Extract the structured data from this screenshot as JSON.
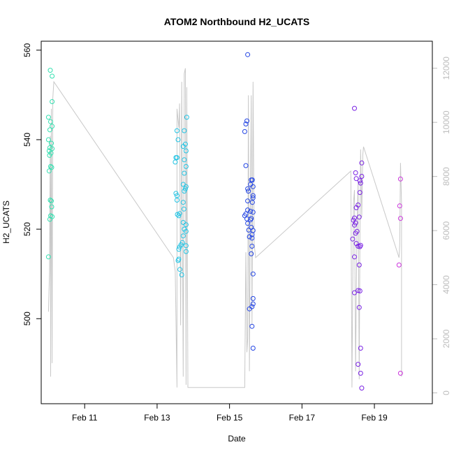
{
  "chart_data": {
    "type": "scatter",
    "title": "ATOM2 Northbound H2_UCATS",
    "xlabel": "Date",
    "ylabel": "H2_UCATS",
    "x_ticks": [
      {
        "day": 11,
        "label": "Feb 11"
      },
      {
        "day": 13,
        "label": "Feb 13"
      },
      {
        "day": 15,
        "label": "Feb 15"
      },
      {
        "day": 17,
        "label": "Feb 17"
      },
      {
        "day": 19,
        "label": "Feb 19"
      }
    ],
    "xlim": [
      9.8,
      20.6
    ],
    "ylim": [
      481,
      562
    ],
    "y_ticks": [
      500,
      520,
      540,
      560
    ],
    "y2lim": [
      -400,
      13000
    ],
    "y2_ticks": [
      0,
      2000,
      4000,
      6000,
      8000,
      10000,
      12000
    ],
    "grid": false,
    "colors": {
      "feb10": "#33e0b0",
      "feb13": "#22c4e4",
      "feb15": "#2244e4",
      "feb18": "#7a22e4",
      "feb19": "#cc33dd",
      "line": "#c8c8c8"
    },
    "series": [
      {
        "color_key": "feb10",
        "points": [
          [
            10.05,
            555.5
          ],
          [
            10.1,
            554.2
          ],
          [
            10.0,
            545
          ],
          [
            10.06,
            544
          ],
          [
            10.1,
            543
          ],
          [
            10.04,
            542.2
          ],
          [
            10.0,
            540
          ],
          [
            10.08,
            539.2
          ],
          [
            10.04,
            538.2
          ],
          [
            10.1,
            538
          ],
          [
            10.02,
            537.5
          ],
          [
            10.07,
            537
          ],
          [
            10.03,
            536.5
          ],
          [
            10.06,
            534
          ],
          [
            10.09,
            533.8
          ],
          [
            10.02,
            533
          ],
          [
            10.05,
            526.5
          ],
          [
            10.08,
            526.3
          ],
          [
            10.09,
            525
          ],
          [
            10.06,
            523
          ],
          [
            10.1,
            522.8
          ],
          [
            10.04,
            522.2
          ],
          [
            10.0,
            513.8
          ],
          [
            10.1,
            548.5
          ]
        ]
      },
      {
        "color_key": "feb13",
        "points": [
          [
            13.55,
            542
          ],
          [
            13.75,
            542
          ],
          [
            13.58,
            540
          ],
          [
            13.72,
            538.5
          ],
          [
            13.78,
            539
          ],
          [
            13.8,
            537.5
          ],
          [
            13.52,
            536
          ],
          [
            13.55,
            536
          ],
          [
            13.5,
            535
          ],
          [
            13.75,
            535.5
          ],
          [
            13.8,
            534
          ],
          [
            13.75,
            532.5
          ],
          [
            13.72,
            530
          ],
          [
            13.8,
            529.5
          ],
          [
            13.78,
            529
          ],
          [
            13.75,
            528.5
          ],
          [
            13.52,
            528
          ],
          [
            13.55,
            527.5
          ],
          [
            13.55,
            526.5
          ],
          [
            13.72,
            526
          ],
          [
            13.74,
            524.5
          ],
          [
            13.6,
            523
          ],
          [
            13.62,
            523.5
          ],
          [
            13.56,
            523.3
          ],
          [
            13.72,
            521.5
          ],
          [
            13.8,
            521
          ],
          [
            13.75,
            520
          ],
          [
            13.8,
            519.5
          ],
          [
            13.72,
            518.5
          ],
          [
            13.7,
            517
          ],
          [
            13.66,
            516.5
          ],
          [
            13.62,
            516
          ],
          [
            13.6,
            515.5
          ],
          [
            13.8,
            515
          ],
          [
            13.6,
            513.3
          ],
          [
            13.58,
            513
          ],
          [
            13.63,
            511
          ],
          [
            13.68,
            509.8
          ],
          [
            13.82,
            545
          ],
          [
            13.8,
            516.3
          ]
        ]
      },
      {
        "color_key": "feb15",
        "points": [
          [
            15.5,
            559
          ],
          [
            15.45,
            543.5
          ],
          [
            15.48,
            544.2
          ],
          [
            15.42,
            541.8
          ],
          [
            15.45,
            534.2
          ],
          [
            15.6,
            531
          ],
          [
            15.63,
            531
          ],
          [
            15.58,
            530
          ],
          [
            15.65,
            529.5
          ],
          [
            15.5,
            529
          ],
          [
            15.52,
            528.5
          ],
          [
            15.65,
            527.5
          ],
          [
            15.65,
            527
          ],
          [
            15.63,
            526
          ],
          [
            15.5,
            526.3
          ],
          [
            15.58,
            524
          ],
          [
            15.65,
            523.8
          ],
          [
            15.5,
            524.3
          ],
          [
            15.45,
            523.4
          ],
          [
            15.42,
            523
          ],
          [
            15.48,
            522.3
          ],
          [
            15.6,
            522.4
          ],
          [
            15.58,
            522.1
          ],
          [
            15.5,
            521.3
          ],
          [
            15.6,
            520.4
          ],
          [
            15.53,
            519.8
          ],
          [
            15.65,
            519.7
          ],
          [
            15.62,
            518.8
          ],
          [
            15.55,
            518.3
          ],
          [
            15.62,
            518
          ],
          [
            15.62,
            516.2
          ],
          [
            15.6,
            514.5
          ],
          [
            15.65,
            510
          ],
          [
            15.65,
            504.5
          ],
          [
            15.65,
            503.3
          ],
          [
            15.62,
            502.7
          ],
          [
            15.55,
            502.2
          ],
          [
            15.62,
            498.3
          ],
          [
            15.65,
            493.4
          ]
        ]
      },
      {
        "color_key": "feb18",
        "points": [
          [
            18.45,
            547
          ],
          [
            18.65,
            534.8
          ],
          [
            18.48,
            532.6
          ],
          [
            18.65,
            531.8
          ],
          [
            18.5,
            531.3
          ],
          [
            18.6,
            530.8
          ],
          [
            18.62,
            530.3
          ],
          [
            18.6,
            528.2
          ],
          [
            18.55,
            525.4
          ],
          [
            18.5,
            524.8
          ],
          [
            18.45,
            522.5
          ],
          [
            18.42,
            522
          ],
          [
            18.58,
            522.7
          ],
          [
            18.48,
            521.4
          ],
          [
            18.45,
            520.9
          ],
          [
            18.52,
            519.5
          ],
          [
            18.48,
            519.1
          ],
          [
            18.4,
            517.8
          ],
          [
            18.55,
            516.2
          ],
          [
            18.5,
            516.8
          ],
          [
            18.62,
            516.4
          ],
          [
            18.6,
            516.1
          ],
          [
            18.45,
            513.8
          ],
          [
            18.58,
            512
          ],
          [
            18.55,
            506.3
          ],
          [
            18.6,
            506.2
          ],
          [
            18.45,
            505.8
          ],
          [
            18.58,
            502.5
          ],
          [
            18.62,
            493.4
          ],
          [
            18.55,
            489.8
          ],
          [
            18.62,
            487.8
          ],
          [
            18.65,
            484.5
          ]
        ]
      },
      {
        "color_key": "feb19",
        "points": [
          [
            19.72,
            531.2
          ],
          [
            19.7,
            525.2
          ],
          [
            19.72,
            522.4
          ],
          [
            19.68,
            512
          ],
          [
            19.72,
            487.8
          ]
        ]
      }
    ],
    "line_series": [
      [
        10.0,
        3000
      ],
      [
        10.03,
        4500
      ],
      [
        10.05,
        9500
      ],
      [
        10.06,
        600
      ],
      [
        10.08,
        10500
      ],
      [
        10.1,
        1100
      ],
      [
        10.12,
        10900
      ],
      [
        10.15,
        11500
      ],
      [
        13.45,
        5000
      ],
      [
        13.5,
        4500
      ],
      [
        13.55,
        200
      ],
      [
        13.55,
        10500
      ],
      [
        13.6,
        9800
      ],
      [
        13.62,
        10700
      ],
      [
        13.65,
        2500
      ],
      [
        13.68,
        11500
      ],
      [
        13.72,
        600
      ],
      [
        13.75,
        11800
      ],
      [
        13.78,
        12000
      ],
      [
        13.8,
        300
      ],
      [
        13.82,
        11300
      ],
      [
        13.85,
        200
      ],
      [
        15.4,
        200
      ],
      [
        15.42,
        200
      ],
      [
        15.45,
        5200
      ],
      [
        15.48,
        1500
      ],
      [
        15.5,
        2000
      ],
      [
        15.52,
        11000
      ],
      [
        15.55,
        800
      ],
      [
        15.58,
        8000
      ],
      [
        15.6,
        11000
      ],
      [
        15.62,
        2500
      ],
      [
        15.65,
        11500
      ],
      [
        15.68,
        5500
      ],
      [
        15.72,
        5000
      ],
      [
        18.35,
        8200
      ],
      [
        18.38,
        200
      ],
      [
        18.42,
        7000
      ],
      [
        18.45,
        7500
      ],
      [
        18.48,
        800
      ],
      [
        18.52,
        6200
      ],
      [
        18.55,
        7800
      ],
      [
        18.58,
        500
      ],
      [
        18.6,
        5700
      ],
      [
        18.62,
        9000
      ],
      [
        18.65,
        6500
      ],
      [
        18.68,
        8800
      ],
      [
        18.7,
        9100
      ],
      [
        19.68,
        5000
      ],
      [
        19.7,
        5500
      ],
      [
        19.72,
        8500
      ],
      [
        19.75,
        7000
      ],
      [
        19.75,
        600
      ]
    ]
  }
}
